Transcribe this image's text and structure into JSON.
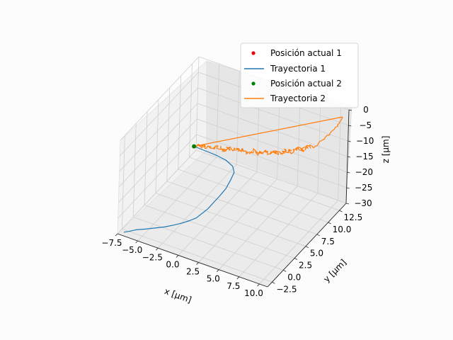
{
  "chart_data": {
    "type": "line",
    "projection": "3d",
    "xlabel": "x [$\\mu m$]",
    "ylabel": "y [$\\mu m$]",
    "zlabel": "z [$\\mu m$]",
    "xlabel_text": "x [μm]",
    "ylabel_text": "y [μm]",
    "zlabel_text": "z [μm]",
    "xlim": [
      -7.5,
      11.0
    ],
    "ylim": [
      -3.5,
      14.0
    ],
    "zlim": [
      -30,
      0
    ],
    "xticks": [
      "−7.5",
      "−5.0",
      "−2.5",
      "0.0",
      "2.5",
      "5.0",
      "7.5",
      "10.0"
    ],
    "yticks": [
      "−2.5",
      "0.0",
      "2.5",
      "5.0",
      "7.5",
      "10.0",
      "12.5"
    ],
    "zticks": [
      "0",
      "−5",
      "−10",
      "−15",
      "−20",
      "−25",
      "−30"
    ],
    "grid": true,
    "legend_position": "upper-right",
    "legend": [
      {
        "label": "Posición actual 1",
        "kind": "marker",
        "color": "#e8000b"
      },
      {
        "label": "Trayectoria 1",
        "kind": "line",
        "color": "#1f77b4"
      },
      {
        "label": "Posición actual 2",
        "kind": "marker",
        "color": "#008000"
      },
      {
        "label": "Trayectoria 2",
        "kind": "line",
        "color": "#ff7f0e"
      }
    ],
    "series": [
      {
        "name": "Trayectoria 1",
        "color": "#1f77b4",
        "points": [
          [
            -7.0,
            -3.0,
            -29.8
          ],
          [
            -6.5,
            -2.8,
            -29.4
          ],
          [
            -5.8,
            -2.5,
            -28.7
          ],
          [
            -4.8,
            -2.2,
            -28.0
          ],
          [
            -3.8,
            -1.9,
            -27.2
          ],
          [
            -2.8,
            -1.6,
            -26.4
          ],
          [
            -1.9,
            -1.2,
            -25.6
          ],
          [
            -1.1,
            -0.8,
            -24.8
          ],
          [
            -0.4,
            -0.4,
            -24.0
          ],
          [
            0.2,
            0.0,
            -23.2
          ],
          [
            0.6,
            0.5,
            -22.2
          ],
          [
            1.0,
            1.1,
            -21.2
          ],
          [
            1.3,
            1.8,
            -20.0
          ],
          [
            1.6,
            2.6,
            -18.8
          ],
          [
            1.9,
            3.4,
            -17.4
          ],
          [
            2.0,
            4.3,
            -15.8
          ],
          [
            2.1,
            4.8,
            -14.2
          ],
          [
            1.9,
            4.8,
            -12.4
          ],
          [
            1.2,
            4.5,
            -10.6
          ],
          [
            0.4,
            4.1,
            -9.4
          ],
          [
            -0.5,
            3.8,
            -8.6
          ],
          [
            -1.4,
            3.6,
            -8.1
          ],
          [
            -2.2,
            3.5,
            -7.8
          ]
        ]
      },
      {
        "name": "Trayectoria 2",
        "color": "#ff7f0e",
        "points": [
          [
            -2.2,
            3.5,
            -7.8
          ],
          [
            -1.8,
            3.9,
            -8.0
          ],
          [
            -1.2,
            4.0,
            -7.4
          ],
          [
            -0.6,
            4.4,
            -8.3
          ],
          [
            0.1,
            4.6,
            -7.6
          ],
          [
            0.7,
            5.0,
            -8.5
          ],
          [
            1.3,
            5.1,
            -7.7
          ],
          [
            1.9,
            5.6,
            -8.7
          ],
          [
            2.5,
            5.7,
            -7.8
          ],
          [
            3.0,
            6.1,
            -8.9
          ],
          [
            3.6,
            6.3,
            -8.1
          ],
          [
            4.1,
            6.7,
            -9.3
          ],
          [
            4.6,
            6.9,
            -8.4
          ],
          [
            5.1,
            7.4,
            -9.5
          ],
          [
            5.5,
            7.6,
            -8.6
          ],
          [
            6.0,
            8.1,
            -9.6
          ],
          [
            6.4,
            8.4,
            -8.7
          ],
          [
            6.9,
            8.9,
            -9.4
          ],
          [
            7.4,
            9.2,
            -8.6
          ],
          [
            7.8,
            9.8,
            -9.3
          ],
          [
            8.3,
            10.2,
            -8.4
          ],
          [
            8.7,
            10.8,
            -9.0
          ],
          [
            9.0,
            11.3,
            -8.0
          ],
          [
            9.3,
            11.8,
            -7.4
          ],
          [
            9.6,
            12.2,
            -6.5
          ],
          [
            9.9,
            12.7,
            -5.6
          ],
          [
            10.2,
            13.0,
            -4.5
          ],
          [
            10.4,
            13.3,
            -3.2
          ],
          [
            10.5,
            13.5,
            -2.0
          ]
        ]
      }
    ],
    "markers": [
      {
        "name": "Posición actual 2",
        "color": "#008000",
        "point": [
          -2.2,
          3.5,
          -7.8
        ]
      }
    ]
  }
}
